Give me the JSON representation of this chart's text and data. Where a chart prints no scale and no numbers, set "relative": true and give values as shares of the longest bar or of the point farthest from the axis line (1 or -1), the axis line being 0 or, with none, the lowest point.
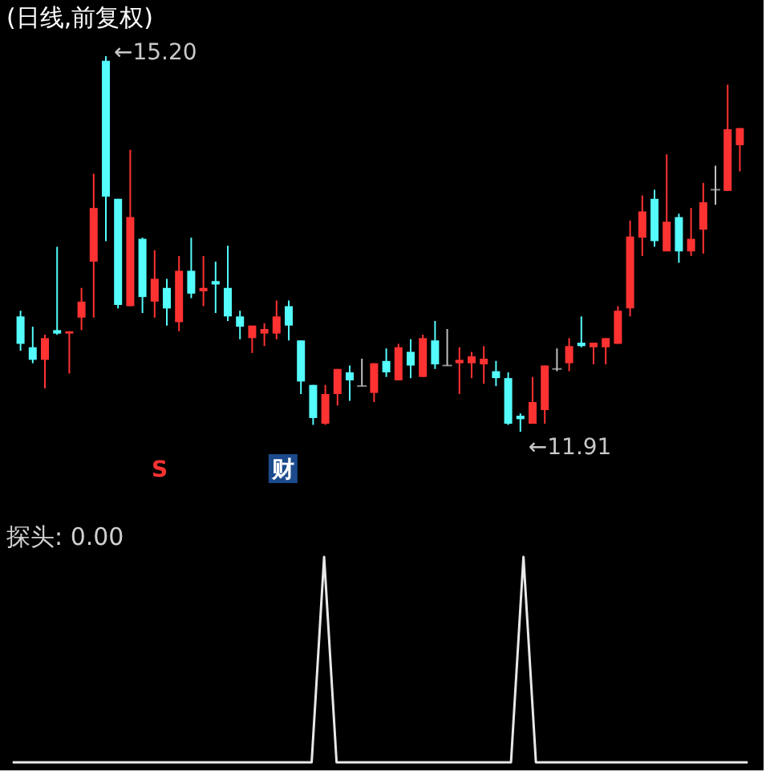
{
  "chart_data": [
    {
      "type": "candlestick",
      "title": "(日线,前复权)",
      "tick_labels": false,
      "categories": [
        null,
        null,
        null,
        null,
        null,
        null,
        null,
        null,
        null,
        null,
        null,
        null,
        null,
        null,
        null,
        null,
        null,
        null,
        null,
        null,
        null,
        null,
        null,
        null,
        null,
        null,
        null,
        null,
        null,
        null,
        null,
        null,
        null,
        null,
        null,
        null,
        null,
        null,
        null,
        null,
        null,
        null,
        null,
        null,
        null,
        null,
        null,
        null,
        null,
        null,
        null,
        null,
        null,
        null,
        null,
        null,
        null,
        null,
        null,
        null
      ],
      "ohlc": [
        [
          12.92,
          12.97,
          12.62,
          12.68
        ],
        [
          12.65,
          12.83,
          12.51,
          12.54
        ],
        [
          12.54,
          12.76,
          12.29,
          12.73
        ],
        [
          12.8,
          13.53,
          12.76,
          12.77
        ],
        [
          12.77,
          12.79,
          12.42,
          12.79
        ],
        [
          12.91,
          13.17,
          12.8,
          13.05
        ],
        [
          13.4,
          14.17,
          12.91,
          13.87
        ],
        [
          15.16,
          15.2,
          13.58,
          13.97
        ],
        [
          13.95,
          13.95,
          12.99,
          13.02
        ],
        [
          13.01,
          14.38,
          13.01,
          13.79
        ],
        [
          13.6,
          13.61,
          12.95,
          13.09
        ],
        [
          13.05,
          13.5,
          12.91,
          13.25
        ],
        [
          13.17,
          13.25,
          12.84,
          12.99
        ],
        [
          12.87,
          13.45,
          12.79,
          13.32
        ],
        [
          13.32,
          13.61,
          13.08,
          13.12
        ],
        [
          13.14,
          13.45,
          13.01,
          13.17
        ],
        [
          13.23,
          13.4,
          12.95,
          13.2
        ],
        [
          13.17,
          13.54,
          12.88,
          12.92
        ],
        [
          12.92,
          12.97,
          12.72,
          12.83
        ],
        [
          12.73,
          12.84,
          12.6,
          12.84
        ],
        [
          12.77,
          12.86,
          12.66,
          12.81
        ],
        [
          12.77,
          13.06,
          12.72,
          12.92
        ],
        [
          13.01,
          13.06,
          12.71,
          12.84
        ],
        [
          12.71,
          12.71,
          12.24,
          12.35
        ],
        [
          12.32,
          12.32,
          11.97,
          12.03
        ],
        [
          11.98,
          12.32,
          11.97,
          12.24
        ],
        [
          12.24,
          12.46,
          12.14,
          12.46
        ],
        [
          12.43,
          12.49,
          12.18,
          12.36
        ],
        [
          12.31,
          12.55,
          12.31,
          12.31
        ],
        [
          12.25,
          12.51,
          12.17,
          12.51
        ],
        [
          12.53,
          12.64,
          12.39,
          12.43
        ],
        [
          12.36,
          12.68,
          12.36,
          12.65
        ],
        [
          12.61,
          12.72,
          12.38,
          12.49
        ],
        [
          12.39,
          12.76,
          12.39,
          12.73
        ],
        [
          12.71,
          12.88,
          12.46,
          12.5
        ],
        [
          12.49,
          12.81,
          12.49,
          12.49
        ],
        [
          12.51,
          12.65,
          12.24,
          12.54
        ],
        [
          12.51,
          12.61,
          12.38,
          12.57
        ],
        [
          12.5,
          12.66,
          12.33,
          12.55
        ],
        [
          12.44,
          12.53,
          12.31,
          12.38
        ],
        [
          12.38,
          12.43,
          11.97,
          11.98
        ],
        [
          12.05,
          12.07,
          11.91,
          12.02
        ],
        [
          11.98,
          12.39,
          11.98,
          12.17
        ],
        [
          12.1,
          12.49,
          11.98,
          12.49
        ],
        [
          12.46,
          12.64,
          12.44,
          12.46
        ],
        [
          12.51,
          12.73,
          12.44,
          12.66
        ],
        [
          12.69,
          12.92,
          12.65,
          12.66
        ],
        [
          12.65,
          12.69,
          12.5,
          12.69
        ],
        [
          12.65,
          12.73,
          12.5,
          12.73
        ],
        [
          12.68,
          13.01,
          12.68,
          12.97
        ],
        [
          12.99,
          13.76,
          12.92,
          13.62
        ],
        [
          13.61,
          13.98,
          13.45,
          13.84
        ],
        [
          13.95,
          14.03,
          13.53,
          13.58
        ],
        [
          13.49,
          14.34,
          13.49,
          13.75
        ],
        [
          13.79,
          13.82,
          13.39,
          13.49
        ],
        [
          13.49,
          13.87,
          13.45,
          13.6
        ],
        [
          13.68,
          14.09,
          13.47,
          13.92
        ],
        [
          14.03,
          14.24,
          13.9,
          14.03
        ],
        [
          14.02,
          14.95,
          14.02,
          14.56
        ],
        [
          14.42,
          14.57,
          14.19,
          14.57
        ]
      ],
      "colors": [
        "#54fcfc",
        "#54fcfc",
        "#ff3232",
        "#54fcfc",
        "#ff3232",
        "#ff3232",
        "#ff3232",
        "#54fcfc",
        "#54fcfc",
        "#ff3232",
        "#54fcfc",
        "#ff3232",
        "#54fcfc",
        "#ff3232",
        "#54fcfc",
        "#ff3232",
        "#54fcfc",
        "#54fcfc",
        "#54fcfc",
        "#ff3232",
        "#ff3232",
        "#ff3232",
        "#54fcfc",
        "#54fcfc",
        "#54fcfc",
        "#ff3232",
        "#ff3232",
        "#54fcfc",
        "#c0c0c0",
        "#ff3232",
        "#54fcfc",
        "#ff3232",
        "#54fcfc",
        "#ff3232",
        "#54fcfc",
        "#c0c0c0",
        "#ff3232",
        "#ff3232",
        "#ff3232",
        "#54fcfc",
        "#54fcfc",
        "#54fcfc",
        "#ff3232",
        "#ff3232",
        "#c0c0c0",
        "#ff3232",
        "#54fcfc",
        "#ff3232",
        "#ff3232",
        "#ff3232",
        "#ff3232",
        "#ff3232",
        "#54fcfc",
        "#ff3232",
        "#54fcfc",
        "#ff3232",
        "#ff3232",
        "#c0c0c0",
        "#ff3232",
        "#ff3232"
      ],
      "annotations": [
        "←15.20",
        "←11.91",
        "S",
        "财"
      ]
    },
    {
      "type": "line",
      "title": "探头: 0.00",
      "relative": true,
      "tick_labels": false,
      "categories": [
        null,
        null,
        null,
        null,
        null,
        null,
        null,
        null,
        null,
        null,
        null,
        null,
        null,
        null,
        null,
        null,
        null,
        null,
        null,
        null,
        null,
        null,
        null,
        null,
        null,
        null,
        null,
        null,
        null,
        null,
        null,
        null,
        null,
        null,
        null,
        null,
        null,
        null,
        null,
        null,
        null,
        null,
        null,
        null,
        null,
        null,
        null,
        null,
        null,
        null,
        null,
        null,
        null,
        null,
        null,
        null,
        null,
        null,
        null,
        null
      ],
      "series": [
        {
          "color": "#e8e8e8",
          "values": [
            0,
            0,
            0,
            0,
            0,
            0,
            0,
            0,
            0,
            0,
            0,
            0,
            0,
            0,
            0,
            0,
            0,
            0,
            0,
            0,
            0,
            0,
            0,
            0,
            0,
            1,
            0,
            0,
            0,
            0,
            0,
            0,
            0,
            0,
            0,
            0,
            0,
            0,
            0,
            0,
            0,
            1,
            0,
            0,
            0,
            0,
            0,
            0,
            0,
            0,
            0,
            0,
            0,
            0,
            0,
            0,
            0,
            0,
            0,
            0
          ]
        }
      ]
    }
  ]
}
